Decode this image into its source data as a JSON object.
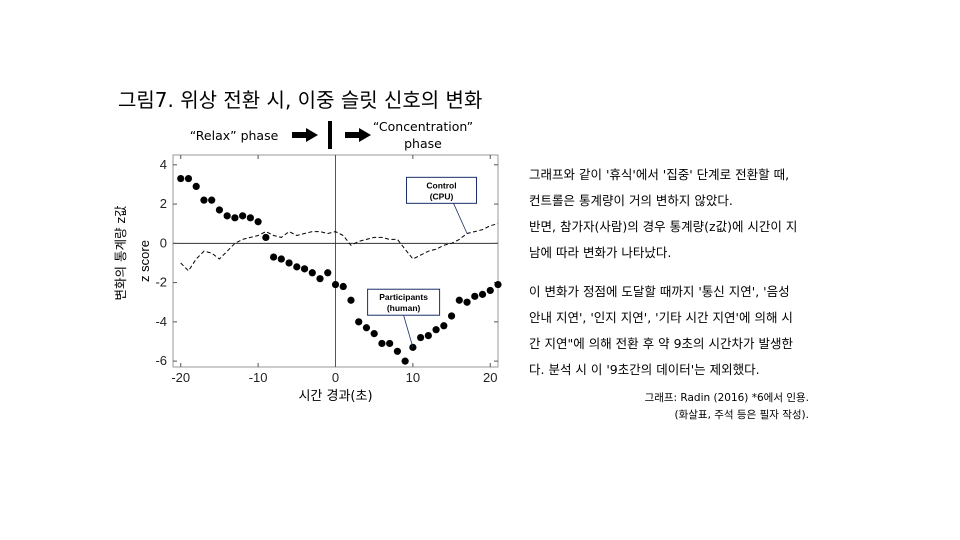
{
  "title": "그림7. 위상 전환 시, 이중 슬릿 신호의 변화",
  "phases": {
    "relax": "“Relax” phase",
    "concentration_1": "“Concentration”",
    "concentration_2": "phase"
  },
  "chart_data": {
    "type": "scatter",
    "xlabel": "시간 경과(초)",
    "ylabel_outer": "변화의 통계량 z값",
    "ylabel_inner": "z score",
    "xlim": [
      -21,
      21
    ],
    "ylim": [
      -6.3,
      4.5
    ],
    "xticks": [
      -20,
      -10,
      0,
      10,
      20
    ],
    "yticks": [
      -6,
      -4,
      -2,
      0,
      2,
      4
    ],
    "vline_x": 0,
    "hline_y": 0,
    "series": [
      {
        "name": "Participants (human)",
        "style": "filled-dots",
        "x": [
          -20,
          -19,
          -18,
          -17,
          -16,
          -15,
          -14,
          -13,
          -12,
          -11,
          -10,
          -9,
          -8,
          -7,
          -6,
          -5,
          -4,
          -3,
          -2,
          -1,
          0,
          1,
          2,
          3,
          4,
          5,
          6,
          7,
          8,
          9,
          10,
          11,
          12,
          13,
          14,
          15,
          16,
          17,
          18,
          19,
          20,
          21
        ],
        "y": [
          3.3,
          3.3,
          2.9,
          2.2,
          2.2,
          1.7,
          1.4,
          1.3,
          1.4,
          1.3,
          1.1,
          0.3,
          -0.7,
          -0.8,
          -1.0,
          -1.2,
          -1.3,
          -1.5,
          -1.8,
          -1.5,
          -2.1,
          -2.2,
          -2.9,
          -4.0,
          -4.3,
          -4.6,
          -5.1,
          -5.1,
          -5.5,
          -6.0,
          -5.3,
          -4.8,
          -4.7,
          -4.4,
          -4.2,
          -3.7,
          -2.9,
          -3.0,
          -2.7,
          -2.6,
          -2.4,
          -2.1
        ]
      },
      {
        "name": "Control (CPU)",
        "style": "dashed-line",
        "x": [
          -20,
          -19,
          -18,
          -17,
          -16,
          -15,
          -14,
          -13,
          -12,
          -11,
          -10,
          -9,
          -8,
          -7,
          -6,
          -5,
          -4,
          -3,
          -2,
          -1,
          0,
          1,
          2,
          3,
          4,
          5,
          6,
          7,
          8,
          9,
          10,
          11,
          12,
          13,
          14,
          15,
          16,
          17,
          18,
          19,
          20,
          21
        ],
        "y": [
          -1.0,
          -1.4,
          -0.8,
          -0.4,
          -0.5,
          -0.8,
          -0.4,
          0.0,
          0.2,
          0.3,
          0.4,
          0.6,
          0.4,
          0.3,
          0.6,
          0.4,
          0.5,
          0.6,
          0.6,
          0.5,
          0.6,
          0.4,
          -0.1,
          0.1,
          0.2,
          0.3,
          0.3,
          0.2,
          0.2,
          -0.3,
          -0.8,
          -0.6,
          -0.4,
          -0.3,
          -0.1,
          0.0,
          0.2,
          0.5,
          0.6,
          0.7,
          0.9,
          1.0
        ]
      }
    ],
    "annotations": [
      {
        "label_1": "Control",
        "label_2": "(CPU)",
        "x": 13.7,
        "y": 2.7,
        "arrow_to": [
          17,
          0.5
        ]
      },
      {
        "label_1": "Participants",
        "label_2": "(human)",
        "x": 8.8,
        "y": -3.0,
        "arrow_to": [
          10,
          -5.3
        ]
      }
    ]
  },
  "description": {
    "p1": [
      "그래프와 같이 '휴식'에서 '집중' 단계로 전환할 때,",
      "컨트롤은 통계량이 거의 변하지 않았다.",
      "반면, 참가자(사람)의 경우 통계량(z값)에 시간이 지",
      "남에 따라 변화가 나타났다."
    ],
    "p2": [
      "이 변화가 정점에 도달할 때까지 '통신 지연', '음성",
      "안내 지연', '인지 지연', '기타 시간 지연'에 의해 시",
      "간 지연\"에 의해 전환 후 약 9초의 시간차가 발생한",
      "다. 분석 시 이 '9초간의 데이터'는 제외했다."
    ]
  },
  "source": {
    "line1": "그래프: Radin (2016) *6에서 인용.",
    "line2": "(화살표, 주석 등은 필자 작성)."
  }
}
